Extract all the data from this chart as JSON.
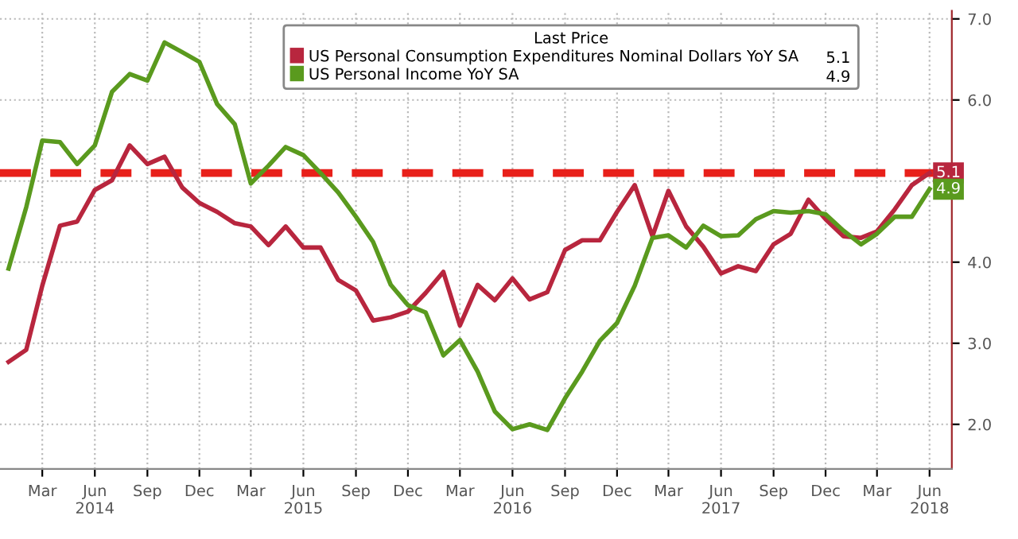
{
  "chart_data": {
    "type": "line",
    "legend_title": "Last Price",
    "legend": "top",
    "x": [
      "2014-01",
      "2014-02",
      "2014-03",
      "2014-04",
      "2014-05",
      "2014-06",
      "2014-07",
      "2014-08",
      "2014-09",
      "2014-10",
      "2014-11",
      "2014-12",
      "2015-01",
      "2015-02",
      "2015-03",
      "2015-04",
      "2015-05",
      "2015-06",
      "2015-07",
      "2015-08",
      "2015-09",
      "2015-10",
      "2015-11",
      "2015-12",
      "2016-01",
      "2016-02",
      "2016-03",
      "2016-04",
      "2016-05",
      "2016-06",
      "2016-07",
      "2016-08",
      "2016-09",
      "2016-10",
      "2016-11",
      "2016-12",
      "2017-01",
      "2017-02",
      "2017-03",
      "2017-04",
      "2017-05",
      "2017-06",
      "2017-07",
      "2017-08",
      "2017-09",
      "2017-10",
      "2017-11",
      "2017-12",
      "2018-01",
      "2018-02",
      "2018-03",
      "2018-04",
      "2018-05",
      "2018-06"
    ],
    "series": [
      {
        "name": "US Personal Consumption Expenditures Nominal Dollars YoY SA",
        "color": "#b8263e",
        "values": [
          2.77,
          2.92,
          3.71,
          4.45,
          4.5,
          4.89,
          5.01,
          5.44,
          5.21,
          5.3,
          4.92,
          4.73,
          4.62,
          4.48,
          4.44,
          4.21,
          4.44,
          4.18,
          4.18,
          3.78,
          3.65,
          3.28,
          3.32,
          3.39,
          3.62,
          3.88,
          3.22,
          3.72,
          3.53,
          3.8,
          3.54,
          3.63,
          4.15,
          4.27,
          4.27,
          4.62,
          4.95,
          4.32,
          4.88,
          4.44,
          4.19,
          3.86,
          3.95,
          3.89,
          4.22,
          4.35,
          4.77,
          4.53,
          4.32,
          4.3,
          4.38,
          4.65,
          4.95,
          5.1
        ],
        "value_labels": [
          null,
          null,
          null,
          null,
          null,
          null,
          null,
          null,
          null,
          null,
          null,
          null,
          null,
          null,
          null,
          null,
          null,
          null,
          null,
          null,
          null,
          null,
          null,
          null,
          null,
          null,
          null,
          null,
          null,
          null,
          null,
          null,
          null,
          null,
          null,
          null,
          null,
          null,
          null,
          null,
          null,
          null,
          null,
          null,
          null,
          null,
          null,
          null,
          null,
          null,
          null,
          null,
          null,
          "5.1"
        ]
      },
      {
        "name": "US Personal Income YoY SA",
        "color": "#5a9a1e",
        "values": [
          3.92,
          4.68,
          5.5,
          5.48,
          5.21,
          5.44,
          6.1,
          6.32,
          6.24,
          6.71,
          6.59,
          6.47,
          5.95,
          5.7,
          4.97,
          5.19,
          5.42,
          5.32,
          5.1,
          4.86,
          4.56,
          4.25,
          3.72,
          3.47,
          3.38,
          2.85,
          3.04,
          2.65,
          2.16,
          1.94,
          2.0,
          1.93,
          2.32,
          2.65,
          3.03,
          3.25,
          3.71,
          4.3,
          4.33,
          4.18,
          4.45,
          4.32,
          4.33,
          4.53,
          4.63,
          4.61,
          4.63,
          4.59,
          4.39,
          4.22,
          4.35,
          4.56,
          4.56,
          4.9
        ],
        "value_labels": [
          null,
          null,
          null,
          null,
          null,
          null,
          null,
          null,
          null,
          null,
          null,
          null,
          null,
          null,
          null,
          null,
          null,
          null,
          null,
          null,
          null,
          null,
          null,
          null,
          null,
          null,
          null,
          null,
          null,
          null,
          null,
          null,
          null,
          null,
          null,
          null,
          null,
          null,
          null,
          null,
          null,
          null,
          null,
          null,
          null,
          null,
          null,
          null,
          null,
          null,
          null,
          null,
          null,
          "4.9"
        ]
      }
    ],
    "ylim": [
      1.45,
      7.1
    ],
    "yticks": [
      {
        "value": 2,
        "label": "2.0"
      },
      {
        "value": 3,
        "label": "3.0"
      },
      {
        "value": 4,
        "label": "4.0"
      },
      {
        "value": 5,
        "label": null
      },
      {
        "value": 6,
        "label": "6.0"
      },
      {
        "value": 7,
        "label": "7.0"
      }
    ],
    "xlim": [
      "2013-12-17",
      "2018-07-10"
    ],
    "xticks": [
      {
        "value": "2014-03",
        "label": "Mar"
      },
      {
        "value": "2014-06",
        "label": "Jun\n2014"
      },
      {
        "value": "2014-09",
        "label": "Sep"
      },
      {
        "value": "2014-12",
        "label": "Dec"
      },
      {
        "value": "2015-03",
        "label": "Mar"
      },
      {
        "value": "2015-06",
        "label": "Jun\n2015"
      },
      {
        "value": "2015-09",
        "label": "Sep"
      },
      {
        "value": "2015-12",
        "label": "Dec"
      },
      {
        "value": "2016-03",
        "label": "Mar"
      },
      {
        "value": "2016-06",
        "label": "Jun\n2016"
      },
      {
        "value": "2016-09",
        "label": "Sep"
      },
      {
        "value": "2016-12",
        "label": "Dec"
      },
      {
        "value": "2017-03",
        "label": "Mar"
      },
      {
        "value": "2017-06",
        "label": "Jun\n2017"
      },
      {
        "value": "2017-09",
        "label": "Sep"
      },
      {
        "value": "2017-12",
        "label": "Dec"
      },
      {
        "value": "2018-03",
        "label": "Mar"
      },
      {
        "value": "2018-06",
        "label": "Jun\n2018"
      }
    ],
    "ref_lines": [
      {
        "axis": "y",
        "value": 5.1,
        "color": "#e8201a",
        "line_style": "dashed"
      }
    ],
    "grid": true,
    "marker": "none",
    "line_style": "solid"
  }
}
